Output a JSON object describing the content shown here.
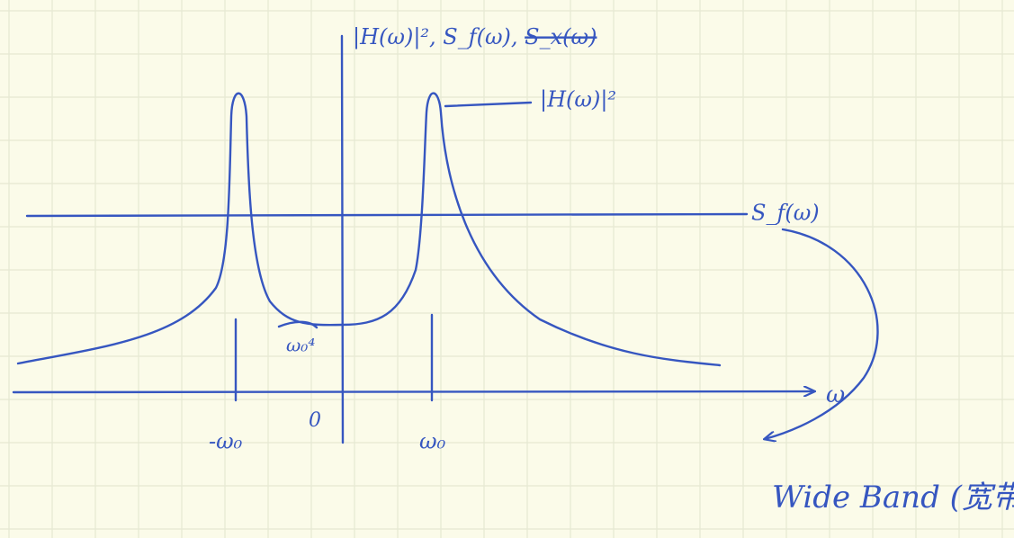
{
  "y_axis_label": {
    "main": "|H(ω)|², S_f(ω), ",
    "struck": "S_x(ω)"
  },
  "x_axis_label": "ω",
  "ticks": [
    "-ω₀",
    "0",
    "ω₀"
  ],
  "min_label": "ω₀⁴",
  "curve_labels": [
    "|H(ω)|²",
    "S_f(ω)"
  ],
  "note": "Wide Band (宽带域)"
}
